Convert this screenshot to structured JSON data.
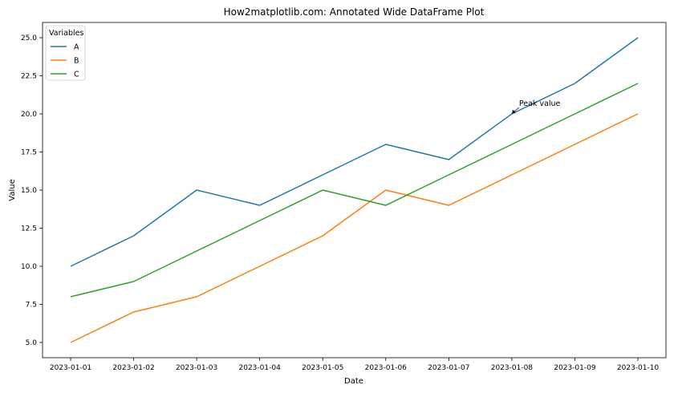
{
  "chart_data": {
    "type": "line",
    "title": "How2matplotlib.com: Annotated Wide DataFrame Plot",
    "xlabel": "Date",
    "ylabel": "Value",
    "x": [
      "2023-01-01",
      "2023-01-02",
      "2023-01-03",
      "2023-01-04",
      "2023-01-05",
      "2023-01-06",
      "2023-01-07",
      "2023-01-08",
      "2023-01-09",
      "2023-01-10"
    ],
    "ylim": [
      4.0,
      26.0
    ],
    "yticks": [
      "5.0",
      "7.5",
      "10.0",
      "12.5",
      "15.0",
      "17.5",
      "20.0",
      "22.5",
      "25.0"
    ],
    "grid": false,
    "legend": {
      "title": "Variables",
      "placement": "top-left"
    },
    "series": [
      {
        "name": "A",
        "color": "#1f77b4",
        "values": [
          10,
          12,
          15,
          14,
          16,
          18,
          17,
          20,
          22,
          25
        ]
      },
      {
        "name": "B",
        "color": "#ff7f0e",
        "values": [
          5,
          7,
          8,
          10,
          12,
          15,
          14,
          16,
          18,
          20
        ]
      },
      {
        "name": "C",
        "color": "#2ca02c",
        "values": [
          8,
          9,
          11,
          13,
          15,
          14,
          16,
          18,
          20,
          22
        ]
      }
    ],
    "annotations": [
      {
        "text": "Peak value",
        "x": "2023-01-08",
        "y": 20
      }
    ]
  }
}
